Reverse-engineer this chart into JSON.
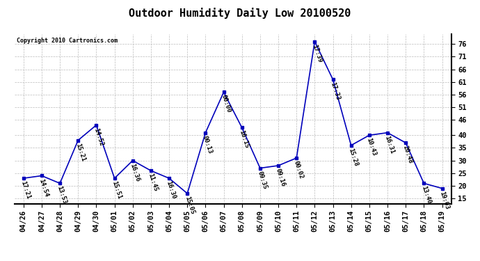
{
  "title": "Outdoor Humidity Daily Low 20100520",
  "copyright_text": "Copyright 2010 Cartronics.com",
  "line_color": "#0000bb",
  "background_color": "#ffffff",
  "plot_bg_color": "#ffffff",
  "grid_color": "#bbbbbb",
  "categories": [
    "04/26",
    "04/27",
    "04/28",
    "04/29",
    "04/30",
    "05/01",
    "05/02",
    "05/03",
    "05/04",
    "05/05",
    "05/06",
    "05/07",
    "05/08",
    "05/09",
    "05/10",
    "05/11",
    "05/12",
    "05/13",
    "05/14",
    "05/15",
    "05/16",
    "05/17",
    "05/18",
    "05/19"
  ],
  "values": [
    23,
    24,
    21,
    38,
    44,
    23,
    30,
    26,
    23,
    17,
    41,
    57,
    43,
    27,
    28,
    31,
    77,
    62,
    36,
    40,
    41,
    37,
    21,
    19
  ],
  "labels": [
    "17:21",
    "14:54",
    "13:53",
    "15:21",
    "14:52",
    "15:51",
    "16:36",
    "11:45",
    "16:30",
    "15:05",
    "00:13",
    "00:00",
    "16:15",
    "09:35",
    "09:16",
    "00:02",
    "17:39",
    "17:33",
    "15:28",
    "10:43",
    "16:31",
    "20:48",
    "13:40",
    "19:03"
  ],
  "ylim": [
    13,
    80
  ],
  "yticks": [
    15,
    20,
    25,
    30,
    35,
    40,
    46,
    51,
    56,
    61,
    66,
    71,
    76
  ],
  "title_fontsize": 11,
  "label_fontsize": 6.5,
  "tick_fontsize": 7.5,
  "figwidth": 6.9,
  "figheight": 3.75,
  "dpi": 100
}
